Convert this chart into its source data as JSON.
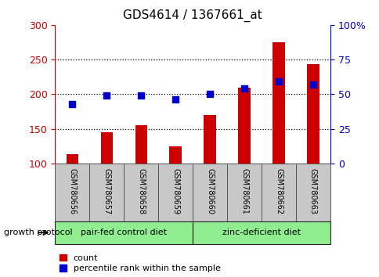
{
  "title": "GDS4614 / 1367661_at",
  "categories": [
    "GSM780656",
    "GSM780657",
    "GSM780658",
    "GSM780659",
    "GSM780660",
    "GSM780661",
    "GSM780662",
    "GSM780663"
  ],
  "bar_values": [
    113,
    145,
    155,
    125,
    170,
    210,
    275,
    243
  ],
  "percentile_values": [
    43,
    49,
    49,
    46,
    50,
    54,
    59,
    57
  ],
  "bar_color": "#cc0000",
  "dot_color": "#0000cc",
  "ylim_left": [
    100,
    300
  ],
  "ylim_right": [
    0,
    100
  ],
  "yticks_left": [
    100,
    150,
    200,
    250,
    300
  ],
  "ytick_labels_left": [
    "100",
    "150",
    "200",
    "250",
    "300"
  ],
  "yticks_right": [
    0,
    25,
    50,
    75,
    100
  ],
  "ytick_labels_right": [
    "0",
    "25",
    "50",
    "75",
    "100%"
  ],
  "grid_lines": [
    150,
    200,
    250
  ],
  "group1_label": "pair-fed control diet",
  "group2_label": "zinc-deficient diet",
  "growth_protocol_label": "growth protocol",
  "legend_count_label": "count",
  "legend_percentile_label": "percentile rank within the sample",
  "group_bg_color": "#90ee90",
  "tick_bg_color": "#c8c8c8",
  "left_tick_color": "#cc0000",
  "right_tick_color": "#0000cc",
  "bar_width": 0.35,
  "dot_size": 28
}
